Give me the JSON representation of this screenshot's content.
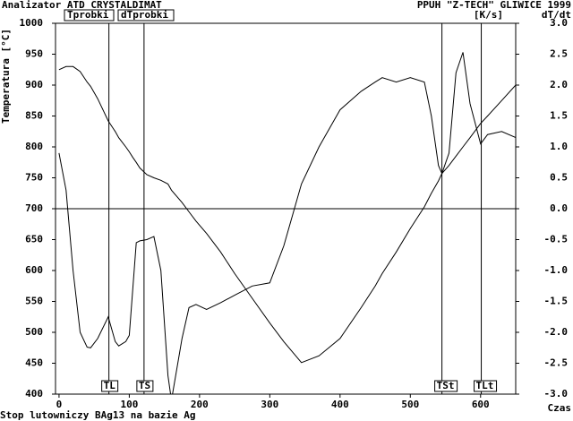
{
  "chart_data": {
    "type": "line",
    "title": "Analizator ATD CRYSTALDIMAT",
    "subtitle": "PPUH \"Z-TECH\" GLIWICE 1999",
    "footer": "Stop lutowniczy BAg13 na bazie Ag",
    "x_label": "Czas",
    "y_label": "Temperatura [°C]",
    "y2_label": "dT/dt",
    "y2_unit": "[K/s]",
    "x": [
      0,
      10,
      20,
      30,
      40,
      45,
      55,
      70,
      80,
      85,
      95,
      100,
      105,
      110,
      115,
      125,
      135,
      145,
      155,
      160,
      175,
      185,
      195,
      210,
      230,
      250,
      275,
      300,
      320,
      345,
      370,
      400,
      430,
      450,
      460,
      480,
      500,
      520,
      530,
      540,
      545,
      555,
      565,
      575,
      585,
      600,
      610,
      630,
      650
    ],
    "series": [
      {
        "name": "Tprobki",
        "color": "#000000",
        "values": [
          925,
          930,
          930,
          922,
          905,
          898,
          878,
          842,
          825,
          815,
          800,
          792,
          783,
          775,
          766,
          755,
          750,
          746,
          740,
          730,
          710,
          695,
          680,
          660,
          630,
          595,
          555,
          515,
          485,
          451,
          462,
          490,
          540,
          575,
          595,
          630,
          668,
          703,
          725,
          745,
          757,
          770,
          785,
          800,
          815,
          838,
          850,
          875,
          900
        ]
      },
      {
        "name": "dTprobki",
        "color": "#000000",
        "axis": "y2",
        "values": [
          0.9,
          0.3,
          -1.0,
          -2.0,
          -2.24,
          -2.25,
          -2.1,
          -1.75,
          -2.15,
          -2.22,
          -2.15,
          -2.05,
          -1.3,
          -0.55,
          -0.52,
          -0.5,
          -0.45,
          -1.0,
          -2.7,
          -3.1,
          -2.1,
          -1.6,
          -1.55,
          -1.63,
          -1.52,
          -1.4,
          -1.25,
          -1.2,
          -0.6,
          0.4,
          1.0,
          1.6,
          1.9,
          2.05,
          2.12,
          2.05,
          2.12,
          2.05,
          1.5,
          0.7,
          0.57,
          0.9,
          2.2,
          2.53,
          1.7,
          1.05,
          1.2,
          1.25,
          1.15
        ]
      }
    ],
    "markers": [
      {
        "label": "TL",
        "x": 71
      },
      {
        "label": "TS",
        "x": 121
      },
      {
        "label": "TSt",
        "x": 545
      },
      {
        "label": "TLt",
        "x": 601
      }
    ],
    "xlim": [
      -5,
      650
    ],
    "xticks": [
      0,
      100,
      200,
      300,
      400,
      500,
      600
    ],
    "ylim": [
      400,
      1000
    ],
    "yticks": [
      400,
      450,
      500,
      550,
      600,
      650,
      700,
      750,
      800,
      850,
      900,
      950,
      1000
    ],
    "y2lim": [
      -3,
      3
    ],
    "y2ticks": [
      {
        "value": -3,
        "label": "-3.0"
      },
      -2.5,
      {
        "value": -2,
        "label": "-2.0"
      },
      -1.5,
      {
        "value": -1,
        "label": "-1.0"
      },
      -0.5,
      {
        "value": 0,
        "label": "0.0"
      },
      0.5,
      {
        "value": 1,
        "label": "1.0"
      },
      1.5,
      {
        "value": 2,
        "label": "2.0"
      },
      2.5,
      {
        "value": 3,
        "label": "3.0"
      }
    ]
  }
}
